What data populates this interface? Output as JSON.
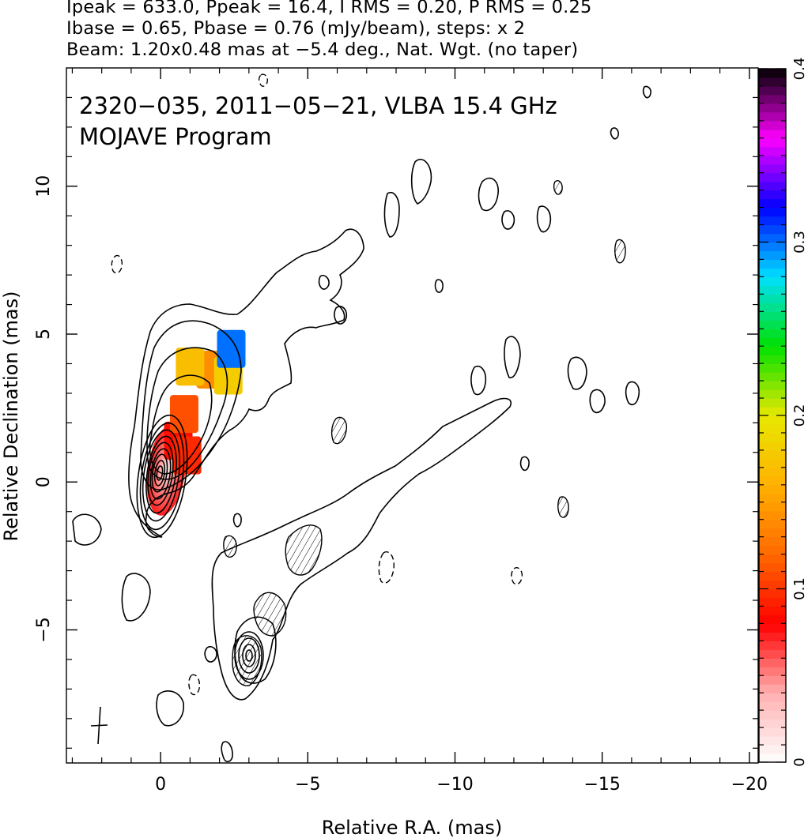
{
  "header": {
    "line1": "Ipeak = 633.0, Ppeak = 16.4, I RMS = 0.20, P RMS = 0.25",
    "line2": "Ibase = 0.65, Pbase = 0.76 (mJy/beam), steps: x 2",
    "line3": "Beam: 1.20x0.48 mas at −5.4 deg., Nat. Wgt. (no taper)"
  },
  "chart_data": {
    "type": "heatmap",
    "title": "2320−035, 2011−05−21, VLBA 15.4 GHz",
    "subtitle": "MOJAVE Program",
    "xlabel": "Relative R.A. (mas)",
    "ylabel": "Relative Declination (mas)",
    "xlim": [
      3.2,
      -20.3
    ],
    "ylim": [
      -9.5,
      14.0
    ],
    "x_ticks": [
      0,
      -5,
      -10,
      -15,
      -20
    ],
    "x_tick_labels": [
      "0",
      "−5",
      "−10",
      "−15",
      "−20"
    ],
    "y_ticks": [
      -5,
      0,
      5,
      10
    ],
    "y_tick_labels": [
      "−5",
      "0",
      "5",
      "10"
    ],
    "colorbar": {
      "min": 0,
      "max": 0.4,
      "ticks": [
        0,
        0.1,
        0.2,
        0.3,
        0.4
      ],
      "tick_labels": [
        "0",
        "0.1",
        "0.2",
        "0.3",
        "0.4"
      ],
      "colormap": [
        "#ffffff",
        "#ffb0b0",
        "#ff0000",
        "#ff6a00",
        "#ffb000",
        "#e8e800",
        "#00e000",
        "#00e0ff",
        "#0000ff",
        "#ff00ff",
        "#000000"
      ]
    },
    "core": {
      "x": -0.2,
      "y": 0.4
    },
    "counterjet_feature": {
      "x": -3.0,
      "y": -6.0
    },
    "beam": {
      "major": 1.2,
      "minor": 0.48,
      "pa": -5.4,
      "x": 2.0,
      "y": -8.3
    },
    "contour_levels_mJy": [
      0.65,
      1.3,
      2.6,
      5.2,
      10.4,
      20.8,
      41.6,
      83.2,
      166.4,
      332.8
    ],
    "fractional_polarization_patches": [
      {
        "x": -0.6,
        "y": 1.4,
        "value": 0.085
      },
      {
        "x": -0.9,
        "y": 0.9,
        "value": 0.095
      },
      {
        "x": -0.8,
        "y": 2.3,
        "value": 0.11
      },
      {
        "x": -1.7,
        "y": 3.8,
        "value": 0.14
      },
      {
        "x": -2.3,
        "y": 3.6,
        "value": 0.18
      },
      {
        "x": -1.0,
        "y": 3.9,
        "value": 0.17
      },
      {
        "x": -2.4,
        "y": 4.5,
        "value": 0.3
      }
    ]
  }
}
